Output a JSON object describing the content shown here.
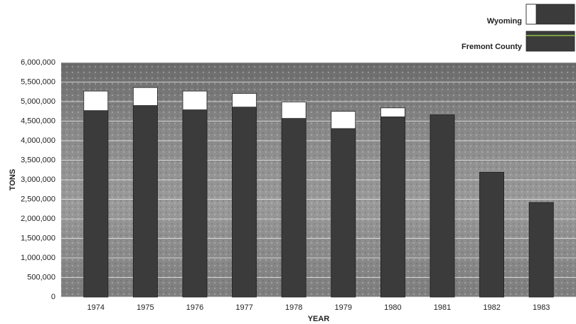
{
  "chart_data": {
    "type": "bar",
    "y_label": "TONS",
    "x_label": "YEAR",
    "categories": [
      "1974",
      "1975",
      "1976",
      "1977",
      "1978",
      "1979",
      "1980",
      "1981",
      "1982",
      "1983"
    ],
    "series": [
      {
        "name": "Wyoming",
        "color": "#ffffff",
        "values": [
          5270000,
          5360000,
          5270000,
          5210000,
          4990000,
          4750000,
          4840000,
          4660000,
          3190000,
          2420000
        ]
      },
      {
        "name": "Fremont County",
        "color": "#3b3b3b",
        "values": [
          4770000,
          4900000,
          4790000,
          4860000,
          4570000,
          4310000,
          4610000,
          4660000,
          3190000,
          2420000
        ]
      }
    ],
    "ylim": [
      0,
      6000000
    ],
    "yticks": [
      0,
      {
        "value": 500000,
        "label": "500,000"
      },
      {
        "value": 1000000,
        "label": "1,000,000"
      },
      {
        "value": 1500000,
        "label": "1,500,000"
      },
      {
        "value": 2000000,
        "label": "2,000,000"
      },
      {
        "value": 2500000,
        "label": "2,500,000"
      },
      {
        "value": 3000000,
        "label": "3,000,000"
      },
      {
        "value": 3500000,
        "label": "3,500,000"
      },
      {
        "value": 4000000,
        "label": "4,000,000"
      },
      {
        "value": 4500000,
        "label": "4,500,000"
      },
      {
        "value": 5000000,
        "label": "5,000,000"
      },
      {
        "value": 5500000,
        "label": "5,500,000"
      },
      {
        "value": 6000000,
        "label": "6,000,000"
      }
    ],
    "grid": true
  }
}
